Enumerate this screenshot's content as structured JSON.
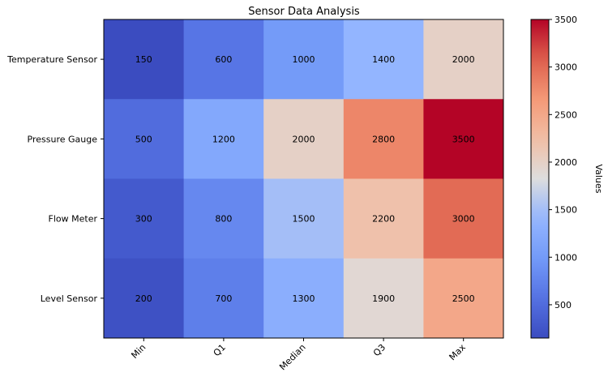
{
  "chart_data": {
    "type": "heatmap",
    "title": "Sensor Data Analysis",
    "xlabel": "",
    "ylabel": "",
    "columns": [
      "Min",
      "Q1",
      "Median",
      "Q3",
      "Max"
    ],
    "rows": [
      "Temperature Sensor",
      "Pressure Gauge",
      "Flow Meter",
      "Level Sensor"
    ],
    "values": [
      [
        150,
        600,
        1000,
        1400,
        2000
      ],
      [
        500,
        1200,
        2000,
        2800,
        3500
      ],
      [
        300,
        800,
        1500,
        2200,
        3000
      ],
      [
        200,
        700,
        1300,
        1900,
        2500
      ]
    ],
    "colormap": "coolwarm",
    "vmin": 150,
    "vmax": 3500,
    "colorbar": {
      "label": "Values",
      "ticks": [
        500,
        1000,
        1500,
        2000,
        2500,
        3000,
        3500
      ]
    },
    "cell_labels": true,
    "grid": false
  }
}
